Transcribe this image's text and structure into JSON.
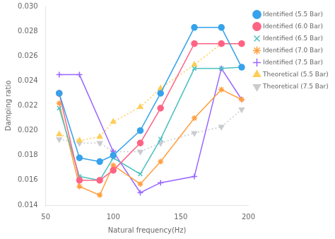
{
  "chart_data": {
    "type": "line",
    "xlabel": "Natural frequency(Hz)",
    "ylabel": "Damping ratio",
    "xlim": [
      50,
      200
    ],
    "ylim": [
      0.014,
      0.03
    ],
    "xticks": [
      50,
      100,
      150,
      200
    ],
    "yticks": [
      0.014,
      0.016,
      0.018,
      {
        "value": 0.02,
        "label": "0.020"
      },
      0.022,
      0.024,
      0.026,
      0.028,
      {
        "value": 0.03,
        "label": "0.030"
      }
    ],
    "grid": false,
    "legend": "upper right",
    "series": [
      {
        "name": "Identified (5.5 Bar)",
        "marker": "circle",
        "line_style": "solid",
        "x": [
          60,
          75,
          90,
          100,
          120,
          135,
          160,
          180,
          195
        ],
        "values": [
          0.023,
          0.0178,
          0.0175,
          0.018,
          0.02,
          0.023,
          0.0283,
          0.0283,
          0.0251
        ]
      },
      {
        "name": "Identified (6.0 Bar)",
        "marker": "circle",
        "line_style": "solid",
        "x": [
          60,
          75,
          90,
          100,
          120,
          135,
          160,
          180,
          195
        ],
        "values": [
          0.023,
          0.016,
          0.016,
          0.0168,
          0.019,
          0.0218,
          0.027,
          0.027,
          0.027
        ]
      },
      {
        "name": "Identified (6.5 Bar)",
        "marker": "oplus",
        "line_style": "solid",
        "x": [
          60,
          75,
          90,
          100,
          120,
          135,
          160,
          180,
          195
        ],
        "values": [
          0.0218,
          0.0163,
          0.016,
          0.0178,
          0.0165,
          0.0193,
          0.025,
          0.025,
          0.0251
        ]
      },
      {
        "name": "Identified (7.0 Bar)",
        "marker": "star",
        "line_style": "solid",
        "x": [
          60,
          75,
          90,
          100,
          120,
          135,
          160,
          180,
          195
        ],
        "values": [
          0.0222,
          0.0155,
          0.0148,
          0.0172,
          0.0157,
          0.0175,
          0.021,
          0.0233,
          0.0225
        ]
      },
      {
        "name": "Identified (7.5 Bar)",
        "marker": "plus",
        "line_style": "solid",
        "x": [
          60,
          75,
          100,
          120,
          135,
          160,
          180,
          195
        ],
        "values": [
          0.0245,
          0.0245,
          0.0183,
          0.015,
          0.0158,
          0.0163,
          0.025,
          0.0225
        ]
      },
      {
        "name": "Theoretical (5.5 Bar)",
        "marker": "triangle",
        "line_style": "dotted",
        "x": [
          60,
          75,
          90,
          100,
          120,
          135,
          160,
          180,
          195
        ],
        "values": [
          0.0197,
          0.0192,
          0.0195,
          0.0207,
          0.0219,
          0.0234,
          0.0253,
          0.027,
          0.027
        ]
      },
      {
        "name": "Theoretical (7.5 Bar)",
        "marker": "triangle-down",
        "line_style": "dotted",
        "x": [
          60,
          75,
          90,
          100,
          120,
          135,
          160,
          180,
          195
        ],
        "values": [
          0.0193,
          0.019,
          0.019,
          0.0183,
          0.0183,
          0.019,
          0.0198,
          0.0203,
          0.0217
        ]
      }
    ]
  }
}
